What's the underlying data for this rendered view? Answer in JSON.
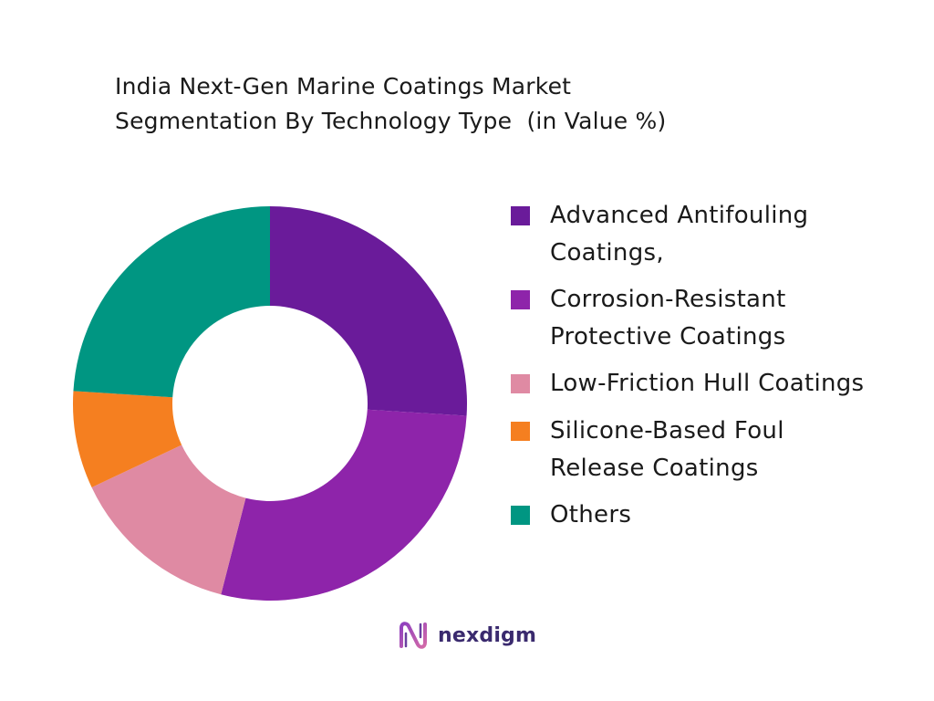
{
  "chart_data": {
    "type": "pie",
    "title": "India Next-Gen Marine Coatings Market\nSegmentation By Technology Type  (in Value %)",
    "title_lines": [
      "India Next-Gen Marine Coatings Market",
      "Segmentation By Technology Type  (in Value %)"
    ],
    "categories": [
      "Advanced Antifouling Coatings,",
      "Corrosion-Resistant Protective Coatings",
      "Low-Friction Hull Coatings",
      "Silicone-Based Foul Release Coatings",
      "Others"
    ],
    "values": [
      26,
      28,
      14,
      8,
      24
    ],
    "colors": [
      "#6a1b9a",
      "#8e24aa",
      "#df8aa3",
      "#f57f20",
      "#009682"
    ],
    "legend_lines": [
      [
        "Advanced Antifouling",
        "Coatings,"
      ],
      [
        "Corrosion-Resistant",
        "Protective Coatings"
      ],
      [
        "Low-Friction Hull Coatings"
      ],
      [
        "Silicone-Based Foul",
        "Release Coatings"
      ],
      [
        "Others"
      ]
    ],
    "legend_placement": "right",
    "donut": true
  },
  "brand": {
    "name": "nexdigm",
    "logo_icon": "nexdigm-logo-icon",
    "color": "#3a2a6e"
  }
}
